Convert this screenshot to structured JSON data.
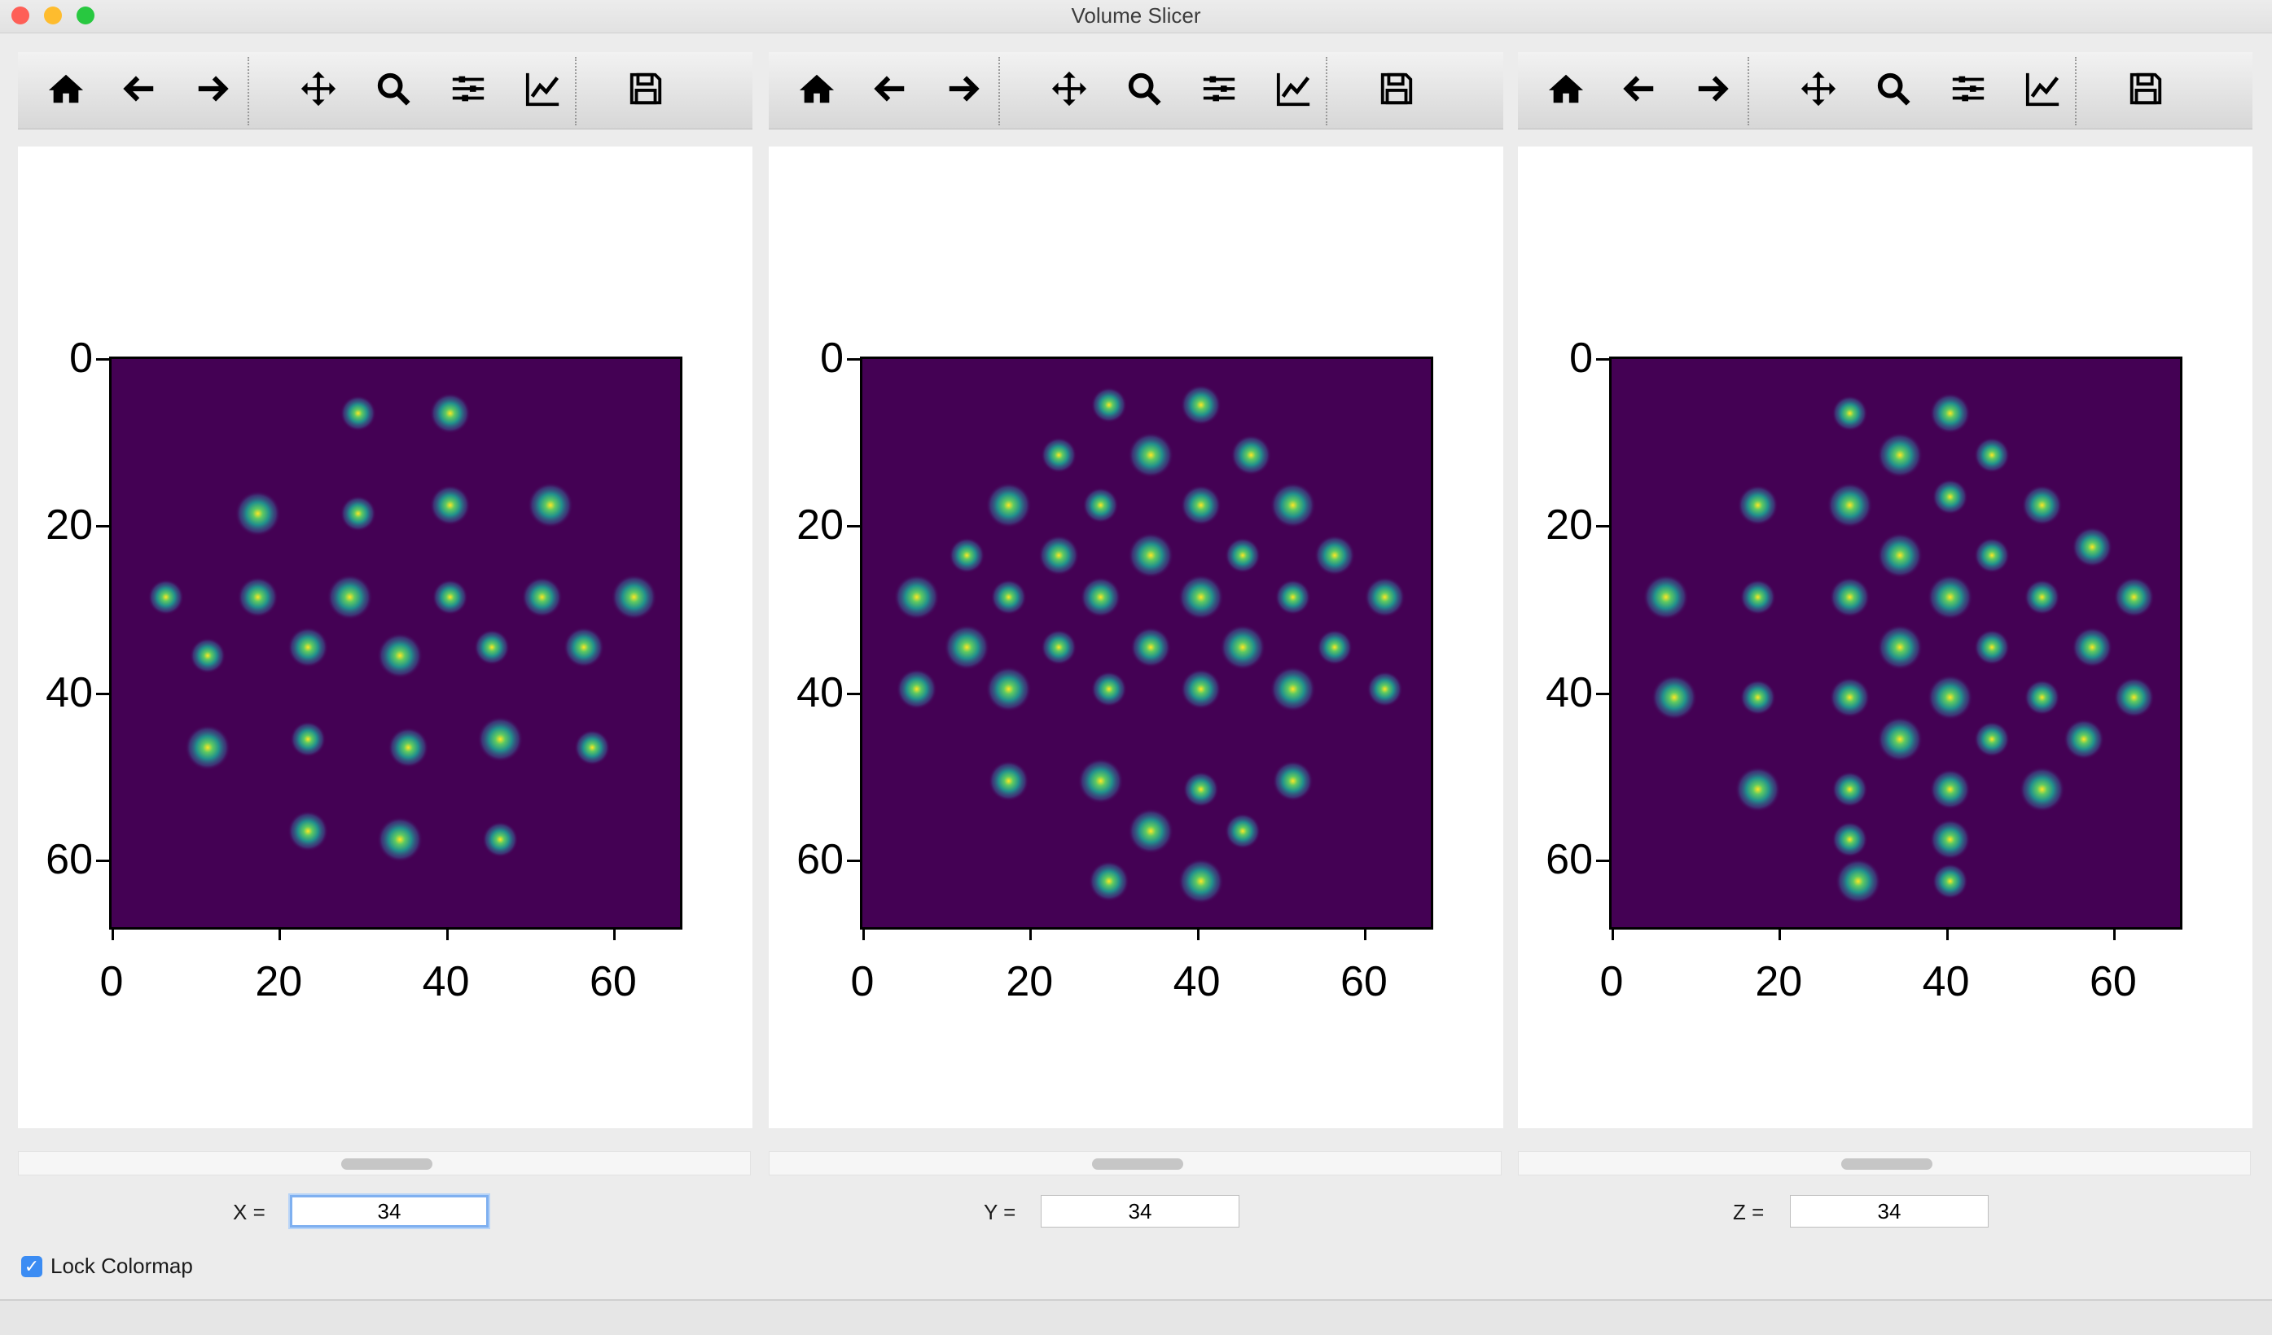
{
  "window": {
    "title": "Volume Slicer"
  },
  "toolbar_icons": [
    "home-icon",
    "back-arrow-icon",
    "forward-arrow-icon",
    "pan-icon",
    "zoom-icon",
    "subplots-icon",
    "edit-axes-icon",
    "save-icon"
  ],
  "panels": [
    {
      "axis_label": "X =",
      "value": "34"
    },
    {
      "axis_label": "Y =",
      "value": "34"
    },
    {
      "axis_label": "Z =",
      "value": "34"
    }
  ],
  "tick_labels": {
    "y": [
      "0",
      "20",
      "40",
      "60"
    ],
    "x": [
      "0",
      "20",
      "40",
      "60"
    ]
  },
  "lock_colormap": {
    "label": "Lock Colormap",
    "checked": true
  },
  "chart_data": [
    {
      "type": "heatmap",
      "colormap": "viridis",
      "xlim": [
        0,
        68
      ],
      "ylim": [
        68,
        0
      ],
      "xticks": [
        0,
        20,
        40,
        60
      ],
      "yticks": [
        0,
        20,
        40,
        60
      ],
      "peaks": [
        [
          29,
          6
        ],
        [
          40,
          6
        ],
        [
          17,
          18
        ],
        [
          29,
          18
        ],
        [
          40,
          17
        ],
        [
          52,
          17
        ],
        [
          6,
          28
        ],
        [
          17,
          28
        ],
        [
          28,
          28
        ],
        [
          40,
          28
        ],
        [
          51,
          28
        ],
        [
          62,
          28
        ],
        [
          11,
          35
        ],
        [
          23,
          34
        ],
        [
          34,
          35
        ],
        [
          45,
          34
        ],
        [
          56,
          34
        ],
        [
          11,
          46
        ],
        [
          23,
          45
        ],
        [
          35,
          46
        ],
        [
          46,
          45
        ],
        [
          57,
          46
        ],
        [
          23,
          56
        ],
        [
          34,
          57
        ],
        [
          46,
          57
        ]
      ]
    },
    {
      "type": "heatmap",
      "colormap": "viridis",
      "xlim": [
        0,
        68
      ],
      "ylim": [
        68,
        0
      ],
      "xticks": [
        0,
        20,
        40,
        60
      ],
      "yticks": [
        0,
        20,
        40,
        60
      ],
      "peaks": [
        [
          29,
          5
        ],
        [
          40,
          5
        ],
        [
          34,
          11
        ],
        [
          23,
          11
        ],
        [
          46,
          11
        ],
        [
          17,
          17
        ],
        [
          28,
          17
        ],
        [
          40,
          17
        ],
        [
          51,
          17
        ],
        [
          12,
          23
        ],
        [
          23,
          23
        ],
        [
          34,
          23
        ],
        [
          45,
          23
        ],
        [
          56,
          23
        ],
        [
          6,
          28
        ],
        [
          17,
          28
        ],
        [
          28,
          28
        ],
        [
          40,
          28
        ],
        [
          51,
          28
        ],
        [
          62,
          28
        ],
        [
          12,
          34
        ],
        [
          23,
          34
        ],
        [
          34,
          34
        ],
        [
          45,
          34
        ],
        [
          56,
          34
        ],
        [
          6,
          39
        ],
        [
          17,
          39
        ],
        [
          29,
          39
        ],
        [
          40,
          39
        ],
        [
          51,
          39
        ],
        [
          62,
          39
        ],
        [
          17,
          50
        ],
        [
          28,
          50
        ],
        [
          40,
          51
        ],
        [
          51,
          50
        ],
        [
          34,
          56
        ],
        [
          45,
          56
        ],
        [
          29,
          62
        ],
        [
          40,
          62
        ]
      ]
    },
    {
      "type": "heatmap",
      "colormap": "viridis",
      "xlim": [
        0,
        68
      ],
      "ylim": [
        68,
        0
      ],
      "xticks": [
        0,
        20,
        40,
        60
      ],
      "yticks": [
        0,
        20,
        40,
        60
      ],
      "peaks": [
        [
          28,
          6
        ],
        [
          40,
          6
        ],
        [
          34,
          11
        ],
        [
          45,
          11
        ],
        [
          17,
          17
        ],
        [
          28,
          17
        ],
        [
          40,
          16
        ],
        [
          51,
          17
        ],
        [
          34,
          23
        ],
        [
          45,
          23
        ],
        [
          57,
          22
        ],
        [
          6,
          28
        ],
        [
          17,
          28
        ],
        [
          28,
          28
        ],
        [
          40,
          28
        ],
        [
          51,
          28
        ],
        [
          62,
          28
        ],
        [
          34,
          34
        ],
        [
          45,
          34
        ],
        [
          57,
          34
        ],
        [
          7,
          40
        ],
        [
          17,
          40
        ],
        [
          28,
          40
        ],
        [
          40,
          40
        ],
        [
          51,
          40
        ],
        [
          62,
          40
        ],
        [
          34,
          45
        ],
        [
          45,
          45
        ],
        [
          56,
          45
        ],
        [
          17,
          51
        ],
        [
          28,
          51
        ],
        [
          40,
          51
        ],
        [
          51,
          51
        ],
        [
          28,
          57
        ],
        [
          40,
          57
        ],
        [
          29,
          62
        ],
        [
          40,
          62
        ]
      ]
    }
  ]
}
